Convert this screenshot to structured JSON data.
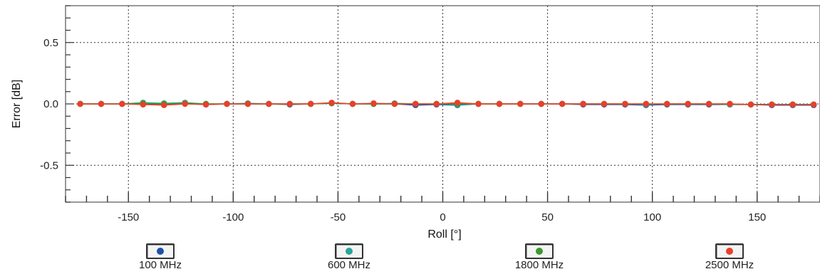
{
  "chart_data": {
    "type": "line",
    "xlabel": "Roll [°]",
    "ylabel": "Error [dB]",
    "xlim": [
      -180,
      180
    ],
    "ylim": [
      -0.8,
      0.8
    ],
    "x_ticks": [
      -150,
      -100,
      -50,
      0,
      50,
      100,
      150
    ],
    "y_ticks": [
      0.5,
      0.0,
      -0.5
    ],
    "y_tick_labels": [
      "0.5",
      "0.0",
      "-0.5"
    ],
    "grid": true,
    "legend_position": "bottom",
    "x": [
      -173,
      -163,
      -153,
      -143,
      -133,
      -123,
      -113,
      -103,
      -93,
      -83,
      -73,
      -63,
      -53,
      -43,
      -33,
      -23,
      -13,
      -3,
      7,
      17,
      27,
      37,
      47,
      57,
      67,
      77,
      87,
      97,
      107,
      117,
      127,
      137,
      147,
      157,
      167,
      177
    ],
    "series": [
      {
        "name": "100 MHz",
        "color": "#1f4fa8",
        "values": [
          0.0,
          0.0,
          0.0,
          0.0,
          -0.005,
          0.005,
          -0.005,
          0.0,
          0.0,
          0.0,
          -0.005,
          0.0,
          0.005,
          0.0,
          0.0,
          0.0,
          -0.01,
          -0.005,
          -0.01,
          0.0,
          0.0,
          0.0,
          0.0,
          0.0,
          -0.005,
          -0.005,
          -0.005,
          -0.01,
          -0.005,
          -0.005,
          -0.005,
          -0.005,
          -0.005,
          -0.01,
          -0.01,
          -0.01
        ]
      },
      {
        "name": "600 MHz",
        "color": "#2aa59a",
        "values": [
          0.0,
          0.0,
          0.0,
          0.01,
          0.005,
          0.01,
          0.0,
          0.0,
          0.005,
          0.0,
          0.0,
          0.0,
          0.005,
          0.0,
          0.0,
          0.005,
          0.0,
          0.0,
          -0.005,
          0.0,
          0.0,
          0.0,
          0.0,
          0.0,
          0.0,
          0.0,
          0.0,
          -0.005,
          0.0,
          0.0,
          0.0,
          -0.005,
          -0.005,
          -0.005,
          -0.005,
          -0.005
        ]
      },
      {
        "name": "1800 MHz",
        "color": "#3a9a2e",
        "values": [
          0.0,
          0.0,
          0.0,
          0.005,
          0.0,
          0.005,
          0.0,
          0.0,
          0.0,
          0.0,
          0.0,
          0.0,
          0.005,
          0.0,
          0.0,
          0.0,
          0.0,
          0.0,
          0.0,
          0.0,
          0.0,
          0.0,
          0.0,
          0.0,
          0.0,
          0.0,
          0.0,
          0.0,
          0.0,
          0.0,
          0.0,
          0.0,
          -0.005,
          -0.005,
          -0.005,
          -0.005
        ]
      },
      {
        "name": "2500 MHz",
        "color": "#e8402a",
        "values": [
          0.0,
          0.0,
          0.0,
          -0.005,
          -0.01,
          0.0,
          -0.005,
          0.0,
          0.0,
          0.0,
          0.0,
          0.0,
          0.01,
          0.0,
          0.005,
          0.0,
          0.0,
          0.0,
          0.01,
          0.0,
          0.0,
          0.0,
          0.0,
          0.0,
          0.0,
          0.0,
          0.0,
          0.0,
          0.0,
          0.0,
          0.0,
          0.0,
          -0.005,
          -0.005,
          -0.005,
          -0.005
        ]
      }
    ]
  }
}
